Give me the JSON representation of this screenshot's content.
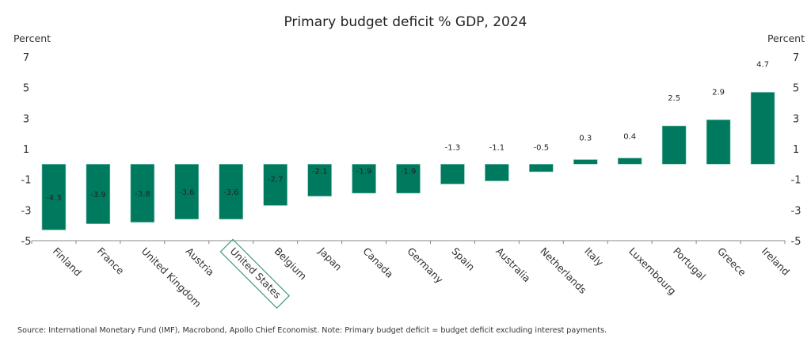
{
  "chart_data": {
    "type": "bar",
    "title": "Primary budget deficit % GDP, 2024",
    "ylabel_left": "Percent",
    "ylabel_right": "Percent",
    "xlabel": "",
    "ylim": [
      -5,
      7
    ],
    "yticks": [
      7,
      5,
      3,
      1,
      -1,
      -3,
      -5
    ],
    "grid": false,
    "categories": [
      "Finland",
      "France",
      "United Kingdom",
      "Austria",
      "United States",
      "Belgium",
      "Japan",
      "Canada",
      "Germany",
      "Spain",
      "Australia",
      "Netherlands",
      "Italy",
      "Luxembourg",
      "Portugal",
      "Greece",
      "Ireland"
    ],
    "values": [
      -4.3,
      -3.9,
      -3.8,
      -3.6,
      -3.6,
      -2.7,
      -2.1,
      -1.9,
      -1.9,
      -1.3,
      -1.1,
      -0.5,
      0.3,
      0.4,
      2.5,
      2.9,
      4.7
    ],
    "data_labels": [
      "-4.3",
      "-3.9",
      "-3.8",
      "-3.6",
      "-3.6",
      "-2.7",
      "-2.1",
      "-1.9",
      "-1.9",
      "-1.3",
      "-1.1",
      "-0.5",
      "0.3",
      "0.4",
      "2.5",
      "2.9",
      "4.7"
    ],
    "highlighted_category": "United States",
    "bar_color": "#007a5e",
    "highlight_box_color": "#3a9a82"
  },
  "footer": {
    "source": "Source: International Monetary Fund (IMF), Macrobond, Apollo Chief Economist. Note: Primary budget deficit = budget deficit excluding interest payments."
  }
}
